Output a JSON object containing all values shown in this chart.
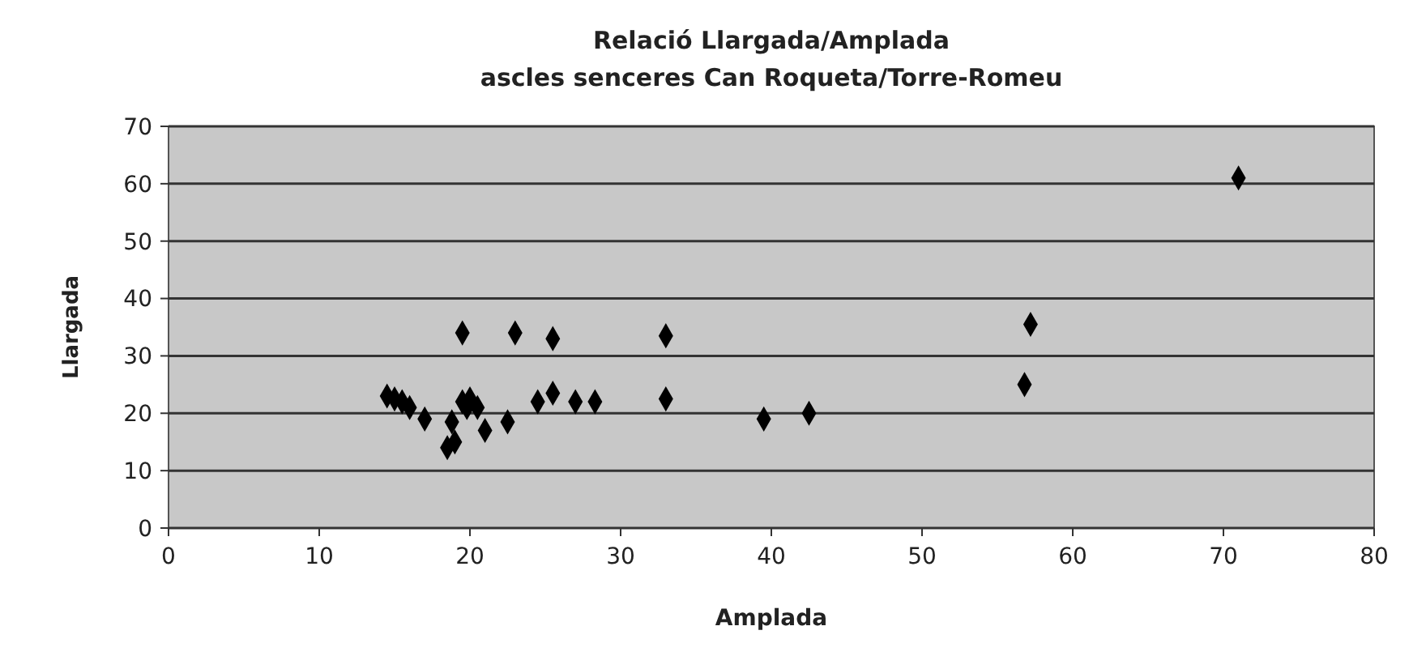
{
  "chart_data": {
    "type": "scatter",
    "title": "Relació Llargada/Amplada",
    "subtitle": "ascles senceres Can Roqueta/Torre-Romeu",
    "xlabel": "Amplada",
    "ylabel": "Llargada",
    "marker": "diamond",
    "grid": "y",
    "xlim": [
      0,
      80
    ],
    "xticks": [
      0,
      10,
      20,
      30,
      40,
      50,
      60,
      70,
      80
    ],
    "ylim": [
      0,
      70
    ],
    "yticks": [
      0,
      10,
      20,
      30,
      40,
      50,
      60,
      70
    ],
    "series": [
      {
        "color": "#000000",
        "x": [
          14.5,
          15,
          15.5,
          16,
          17,
          18.5,
          19,
          18.8,
          19.5,
          19.5,
          19.8,
          20,
          20.5,
          21,
          22.5,
          23,
          24.5,
          25.5,
          25.5,
          27,
          28.3,
          33,
          33,
          39.5,
          42.5,
          56.8,
          57.2,
          71
        ],
        "values": [
          23,
          22.5,
          22,
          21,
          19,
          14,
          15,
          18.5,
          34,
          22,
          21,
          22.5,
          21,
          17,
          18.5,
          34,
          22,
          33,
          23.5,
          22,
          22,
          33.5,
          22.5,
          19,
          20,
          25,
          35.5,
          61
        ]
      }
    ]
  }
}
